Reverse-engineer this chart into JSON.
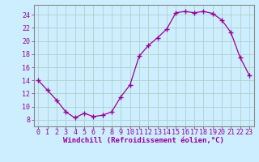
{
  "x": [
    0,
    1,
    2,
    3,
    4,
    5,
    6,
    7,
    8,
    9,
    10,
    11,
    12,
    13,
    14,
    15,
    16,
    17,
    18,
    19,
    20,
    21,
    22,
    23
  ],
  "y": [
    14,
    12.5,
    11,
    9.2,
    8.3,
    9.0,
    8.5,
    8.7,
    9.2,
    11.5,
    13.3,
    17.7,
    19.3,
    20.5,
    21.8,
    24.3,
    24.5,
    24.3,
    24.5,
    24.2,
    23.2,
    21.3,
    17.5,
    14.8
  ],
  "line_color": "#990099",
  "marker": "+",
  "marker_size": 4,
  "bg_color": "#cceeff",
  "grid_color": "#aaddcc",
  "xlabel": "Windchill (Refroidissement éolien,°C)",
  "xlabel_fontsize": 6.5,
  "tick_fontsize": 6.0,
  "ytick_labels": [
    8,
    10,
    12,
    14,
    16,
    18,
    20,
    22,
    24
  ],
  "ylim": [
    7.0,
    25.5
  ],
  "xlim": [
    -0.5,
    23.5
  ],
  "xtick_labels": [
    0,
    1,
    2,
    3,
    4,
    5,
    6,
    7,
    8,
    9,
    10,
    11,
    12,
    13,
    14,
    15,
    16,
    17,
    18,
    19,
    20,
    21,
    22,
    23
  ]
}
